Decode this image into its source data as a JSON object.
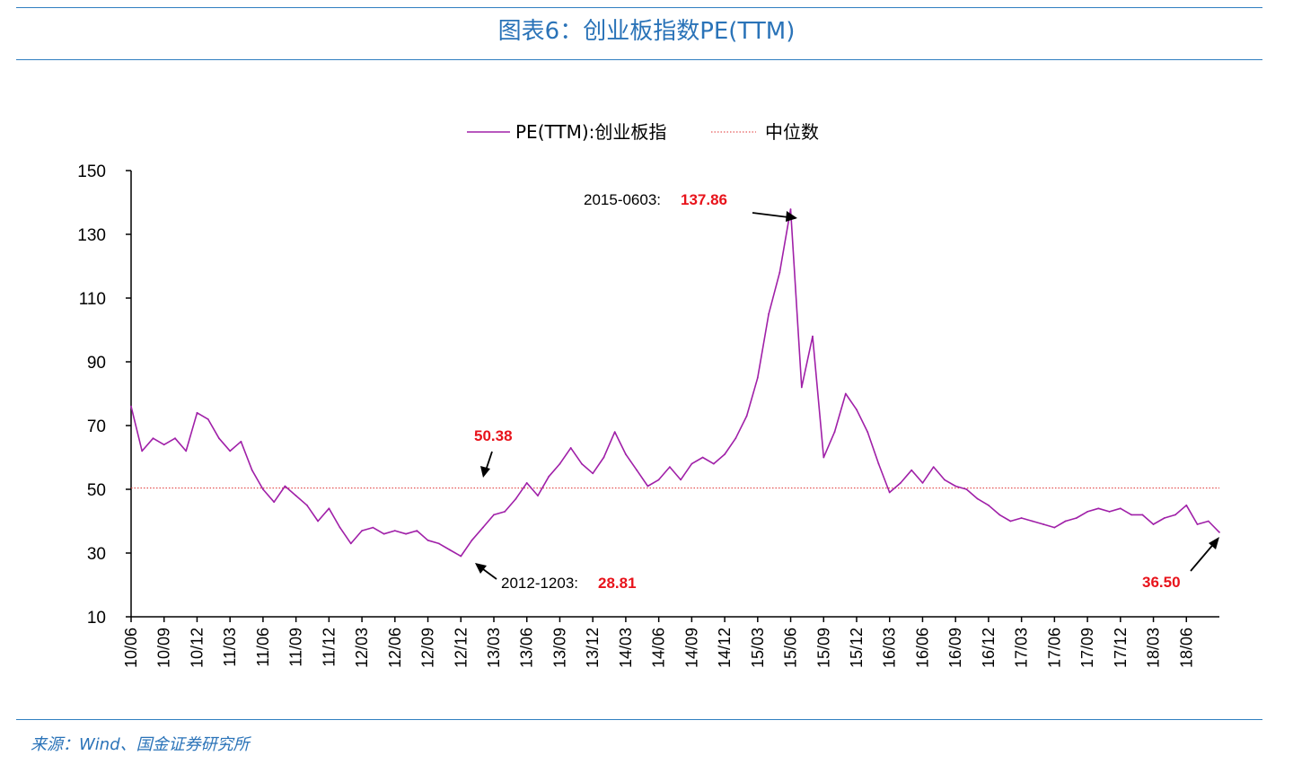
{
  "header": {
    "title": "图表6：创业板指数PE(TTM)"
  },
  "footer": {
    "source": "来源：Wind、国金证券研究所"
  },
  "colors": {
    "accent": "#2f7ec0",
    "series": "#a020a8",
    "median": "#e03030",
    "highlight": "#e8131b"
  },
  "chart_data": {
    "type": "line",
    "legend": [
      "PE(TTM):创业板指",
      "中位数"
    ],
    "legend_position": "top-center",
    "ylim": [
      10,
      150
    ],
    "y_ticks": [
      "150",
      "130",
      "110",
      "90",
      "70",
      "50",
      "30",
      "10"
    ],
    "x_ticks": [
      "10/06",
      "10/09",
      "10/12",
      "11/03",
      "11/06",
      "11/09",
      "11/12",
      "12/03",
      "12/06",
      "12/09",
      "12/12",
      "13/03",
      "13/06",
      "13/09",
      "13/12",
      "14/03",
      "14/06",
      "14/09",
      "14/12",
      "15/03",
      "15/06",
      "15/09",
      "15/12",
      "16/03",
      "16/06",
      "16/09",
      "16/12",
      "17/03",
      "17/06",
      "17/09",
      "17/12",
      "18/03",
      "18/06"
    ],
    "median": 50.38,
    "series": [
      {
        "name": "PE(TTM):创业板指",
        "x": [
          "2010-06",
          "2010-07",
          "2010-08",
          "2010-09",
          "2010-10",
          "2010-11",
          "2010-12",
          "2011-01",
          "2011-02",
          "2011-03",
          "2011-04",
          "2011-05",
          "2011-06",
          "2011-07",
          "2011-08",
          "2011-09",
          "2011-10",
          "2011-11",
          "2011-12",
          "2012-01",
          "2012-02",
          "2012-03",
          "2012-04",
          "2012-05",
          "2012-06",
          "2012-07",
          "2012-08",
          "2012-09",
          "2012-10",
          "2012-11",
          "2012-12",
          "2013-01",
          "2013-02",
          "2013-03",
          "2013-04",
          "2013-05",
          "2013-06",
          "2013-07",
          "2013-08",
          "2013-09",
          "2013-10",
          "2013-11",
          "2013-12",
          "2014-01",
          "2014-02",
          "2014-03",
          "2014-04",
          "2014-05",
          "2014-06",
          "2014-07",
          "2014-08",
          "2014-09",
          "2014-10",
          "2014-11",
          "2014-12",
          "2015-01",
          "2015-02",
          "2015-03",
          "2015-04",
          "2015-05",
          "2015-06",
          "2015-07",
          "2015-08",
          "2015-09",
          "2015-10",
          "2015-11",
          "2015-12",
          "2016-01",
          "2016-02",
          "2016-03",
          "2016-04",
          "2016-05",
          "2016-06",
          "2016-07",
          "2016-08",
          "2016-09",
          "2016-10",
          "2016-11",
          "2016-12",
          "2017-01",
          "2017-02",
          "2017-03",
          "2017-04",
          "2017-05",
          "2017-06",
          "2017-07",
          "2017-08",
          "2017-09",
          "2017-10",
          "2017-11",
          "2017-12",
          "2018-01",
          "2018-02",
          "2018-03",
          "2018-04",
          "2018-05",
          "2018-06",
          "2018-07",
          "2018-08",
          "2018-09"
        ],
        "values": [
          76,
          62,
          66,
          64,
          66,
          62,
          74,
          72,
          66,
          62,
          65,
          56,
          50,
          46,
          51,
          48,
          45,
          40,
          44,
          38,
          33,
          37,
          38,
          36,
          37,
          36,
          37,
          34,
          33,
          31,
          29,
          34,
          38,
          42,
          43,
          47,
          52,
          48,
          54,
          58,
          63,
          58,
          55,
          60,
          68,
          61,
          56,
          51,
          53,
          57,
          53,
          58,
          60,
          58,
          61,
          66,
          73,
          85,
          105,
          118,
          137.86,
          82,
          98,
          60,
          68,
          80,
          75,
          68,
          58,
          49,
          52,
          56,
          52,
          57,
          53,
          51,
          50,
          47,
          45,
          42,
          40,
          41,
          40,
          39,
          38,
          40,
          41,
          43,
          44,
          43,
          44,
          42,
          42,
          39,
          41,
          42,
          45,
          39,
          40,
          36.5
        ]
      }
    ],
    "annotations": [
      {
        "label": "2015-0603:",
        "value": "137.86"
      },
      {
        "label": "",
        "value": "50.38"
      },
      {
        "label": "2012-1203:",
        "value": "28.81"
      },
      {
        "label": "",
        "value": "36.50"
      }
    ]
  }
}
